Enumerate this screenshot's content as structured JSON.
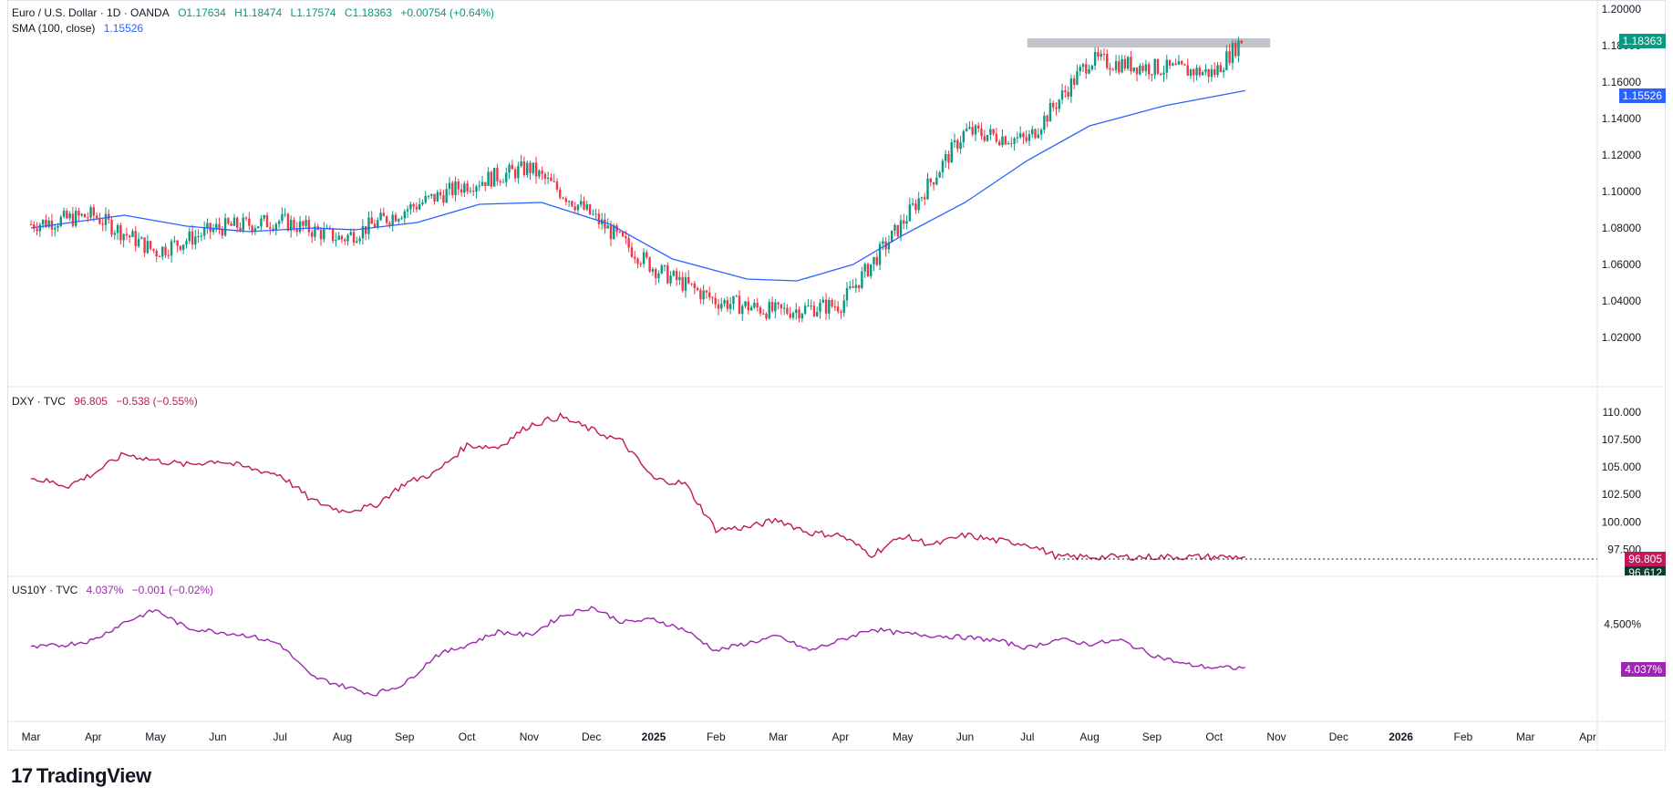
{
  "symbol_legend": {
    "name": "Euro / U.S. Dollar · 1D · OANDA",
    "open": "O1.17634",
    "high": "H1.18474",
    "low": "L1.17574",
    "close": "C1.18363",
    "change": "+0.00754 (+0.64%)"
  },
  "sma_legend": {
    "name": "SMA (100, close)",
    "value": "1.15526"
  },
  "dxy_legend": {
    "name": "DXY · TVC",
    "value": "96.805",
    "change": "−0.538 (−0.55%)"
  },
  "us10y_legend": {
    "name": "US10Y · TVC",
    "value": "4.037%",
    "change": "−0.001 (−0.02%)"
  },
  "price_tags": {
    "last": "1.18363",
    "sma": "1.15526",
    "dxy": "96.805",
    "dxy_low": "96.612",
    "us10y": "4.037%"
  },
  "brand": "TradingView",
  "colors": {
    "up": "#089981",
    "down": "#f23645",
    "sma": "#2962ff",
    "dxy": "#c2185b",
    "us10y": "#9c27b0",
    "resistance": "#b2b5be"
  },
  "chart_data": [
    {
      "type": "candlestick",
      "title": "Euro / U.S. Dollar · 1D · OANDA",
      "ylim": [
        1.01,
        1.2
      ],
      "yticks": [
        "1.20000",
        "1.18000",
        "1.16000",
        "1.14000",
        "1.12000",
        "1.10000",
        "1.08000",
        "1.06000",
        "1.04000",
        "1.02000"
      ],
      "ytick_values": [
        1.2,
        1.18,
        1.16,
        1.14,
        1.12,
        1.1,
        1.08,
        1.06,
        1.04,
        1.02
      ],
      "x_labels": [
        "Mar",
        "Apr",
        "May",
        "Jun",
        "Jul",
        "Aug",
        "Sep",
        "Oct",
        "Nov",
        "Dec",
        "2025",
        "Feb",
        "Mar",
        "Apr",
        "May",
        "Jun",
        "Jul",
        "Aug",
        "Sep",
        "Oct",
        "Nov",
        "Dec",
        "2026",
        "Feb",
        "Mar",
        "Apr"
      ],
      "x_label_bold": [
        false,
        false,
        false,
        false,
        false,
        false,
        false,
        false,
        false,
        false,
        true,
        false,
        false,
        false,
        false,
        false,
        false,
        false,
        false,
        false,
        false,
        false,
        true,
        false,
        false,
        false
      ],
      "x_span_months": [
        0,
        26
      ],
      "close_monthly": [
        1.082,
        1.087,
        1.067,
        1.08,
        1.084,
        1.074,
        1.09,
        1.104,
        1.113,
        1.087,
        1.058,
        1.04,
        1.034,
        1.038,
        1.083,
        1.133,
        1.128,
        1.172,
        1.168,
        1.165,
        1.1836
      ],
      "close_month_index": [
        0,
        1,
        2,
        3,
        4,
        5,
        6,
        7,
        8,
        9,
        10,
        11,
        12,
        13,
        14,
        15,
        16,
        17,
        18,
        19,
        19.45
      ],
      "sma_series": {
        "name": "SMA (100, close)",
        "values": [
          1.08,
          1.087,
          1.081,
          1.078,
          1.08,
          1.079,
          1.083,
          1.093,
          1.094,
          1.082,
          1.063,
          1.052,
          1.051,
          1.06,
          1.076,
          1.094,
          1.117,
          1.136,
          1.147,
          1.1553
        ],
        "month_index": [
          0,
          1.5,
          2.5,
          3.5,
          4.5,
          5.2,
          6.2,
          7.2,
          8.2,
          9.3,
          10.3,
          11.5,
          12.3,
          13.2,
          14.0,
          15.0,
          16.0,
          17.0,
          18.2,
          19.5
        ]
      },
      "resistance_zone": {
        "from": 1.179,
        "to": 1.184,
        "month_start": 16.0,
        "month_end": 19.9
      }
    },
    {
      "type": "line",
      "title": "DXY · TVC",
      "ylim": [
        96.2,
        111.0
      ],
      "yticks": [
        "110.000",
        "107.500",
        "105.000",
        "102.500",
        "100.000",
        "97.500"
      ],
      "ytick_values": [
        110.0,
        107.5,
        105.0,
        102.5,
        100.0,
        97.5
      ],
      "series": [
        {
          "name": "DXY",
          "month_index": [
            0,
            0.6,
            1,
            1.5,
            2,
            2.5,
            3,
            3.5,
            4,
            4.5,
            5,
            5.5,
            6,
            6.5,
            7,
            7.5,
            8,
            8.5,
            9,
            9.5,
            10,
            10.5,
            11,
            11.5,
            12,
            12.5,
            13,
            13.5,
            14,
            14.5,
            15,
            15.5,
            16,
            16.5,
            17,
            17.5,
            18,
            18.5,
            19,
            19.5
          ],
          "values": [
            104.0,
            103.3,
            104.4,
            106.2,
            105.6,
            105.2,
            105.6,
            104.9,
            104.3,
            102.0,
            101.0,
            101.4,
            103.5,
            104.5,
            107.0,
            106.8,
            108.8,
            109.6,
            108.4,
            107.3,
            103.9,
            103.5,
            99.3,
            99.5,
            100.2,
            99.0,
            98.8,
            97.0,
            98.7,
            97.9,
            98.8,
            98.3,
            98.0,
            96.805,
            96.805,
            96.805,
            96.805,
            96.805,
            96.805,
            96.805
          ]
        }
      ],
      "low_line": 96.612
    },
    {
      "type": "line",
      "title": "US10Y · TVC",
      "ylim": [
        3.6,
        4.85
      ],
      "yticks": [
        "4.500%"
      ],
      "ytick_values": [
        4.5
      ],
      "series": [
        {
          "name": "US10Y",
          "month_index": [
            0,
            0.5,
            1,
            1.5,
            2,
            2.5,
            3,
            3.5,
            4,
            4.5,
            5,
            5.5,
            6,
            6.5,
            7,
            7.5,
            8,
            8.5,
            9,
            9.5,
            10,
            10.5,
            11,
            11.5,
            12,
            12.5,
            13,
            13.5,
            14,
            14.5,
            15,
            15.5,
            16,
            16.5,
            17,
            17.5,
            18,
            18.5,
            19,
            19.5
          ],
          "values": [
            4.25,
            4.28,
            4.33,
            4.52,
            4.65,
            4.46,
            4.42,
            4.38,
            4.29,
            3.95,
            3.85,
            3.76,
            3.87,
            4.17,
            4.28,
            4.42,
            4.38,
            4.58,
            4.68,
            4.52,
            4.55,
            4.44,
            4.22,
            4.3,
            4.37,
            4.22,
            4.33,
            4.45,
            4.4,
            4.38,
            4.36,
            4.33,
            4.25,
            4.34,
            4.29,
            4.33,
            4.18,
            4.08,
            4.04,
            4.037
          ]
        }
      ]
    }
  ]
}
